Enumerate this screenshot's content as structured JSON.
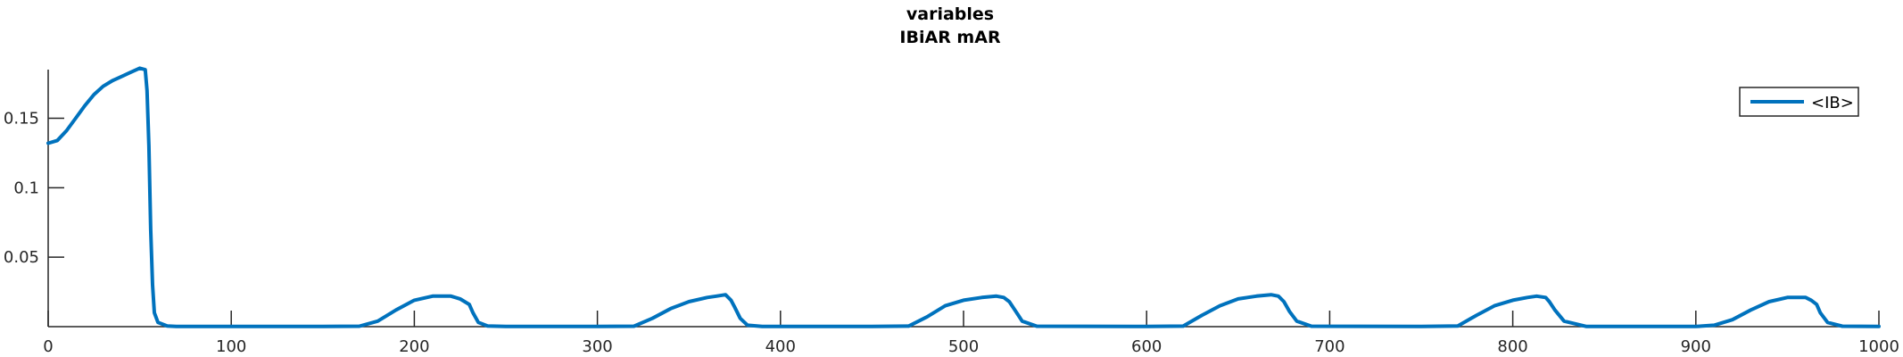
{
  "chart_data": {
    "type": "line",
    "title": "variables",
    "subtitle": "IBiAR mAR",
    "xlabel": "",
    "ylabel": "",
    "xlim": [
      0,
      1000
    ],
    "ylim": [
      0,
      0.185
    ],
    "xticks": [
      0,
      100,
      200,
      300,
      400,
      500,
      600,
      700,
      800,
      900,
      1000
    ],
    "yticks": [
      0.05,
      0.1,
      0.15
    ],
    "ytick_labels": [
      "0.05",
      "0.1",
      "0.15"
    ],
    "grid": false,
    "legend_position": "top-right",
    "series": [
      {
        "name": "<IB>",
        "color": "#0072BD",
        "x": [
          0,
          5,
          10,
          15,
          20,
          25,
          30,
          35,
          40,
          45,
          50,
          53,
          54,
          55,
          56,
          57,
          58,
          60,
          65,
          70,
          100,
          150,
          170,
          180,
          190,
          200,
          210,
          220,
          225,
          230,
          232,
          235,
          240,
          250,
          300,
          320,
          330,
          340,
          350,
          360,
          365,
          370,
          373,
          375,
          378,
          382,
          390,
          450,
          470,
          480,
          490,
          500,
          510,
          518,
          522,
          525,
          528,
          532,
          540,
          600,
          620,
          630,
          640,
          650,
          660,
          668,
          672,
          675,
          678,
          682,
          690,
          750,
          770,
          780,
          790,
          800,
          808,
          813,
          818,
          820,
          823,
          828,
          840,
          900,
          910,
          920,
          930,
          940,
          950,
          960,
          963,
          966,
          968,
          972,
          980,
          1000
        ],
        "y": [
          0.132,
          0.134,
          0.141,
          0.15,
          0.159,
          0.167,
          0.173,
          0.177,
          0.18,
          0.183,
          0.186,
          0.185,
          0.17,
          0.13,
          0.07,
          0.03,
          0.01,
          0.003,
          0.0005,
          0.0002,
          0.0001,
          0.0001,
          0.0003,
          0.004,
          0.012,
          0.019,
          0.022,
          0.022,
          0.02,
          0.016,
          0.01,
          0.003,
          0.0005,
          0.0002,
          0.0001,
          0.0003,
          0.006,
          0.013,
          0.018,
          0.021,
          0.022,
          0.023,
          0.019,
          0.014,
          0.006,
          0.001,
          0.0002,
          0.0001,
          0.0004,
          0.007,
          0.015,
          0.019,
          0.021,
          0.022,
          0.021,
          0.018,
          0.012,
          0.004,
          0.0003,
          0.0001,
          0.0004,
          0.008,
          0.015,
          0.02,
          0.022,
          0.023,
          0.022,
          0.018,
          0.011,
          0.004,
          0.0003,
          0.0001,
          0.0005,
          0.008,
          0.015,
          0.019,
          0.021,
          0.022,
          0.021,
          0.018,
          0.012,
          0.004,
          0.0002,
          0.0001,
          0.001,
          0.005,
          0.012,
          0.018,
          0.021,
          0.021,
          0.019,
          0.016,
          0.01,
          0.003,
          0.0003,
          0.0002
        ]
      }
    ]
  }
}
